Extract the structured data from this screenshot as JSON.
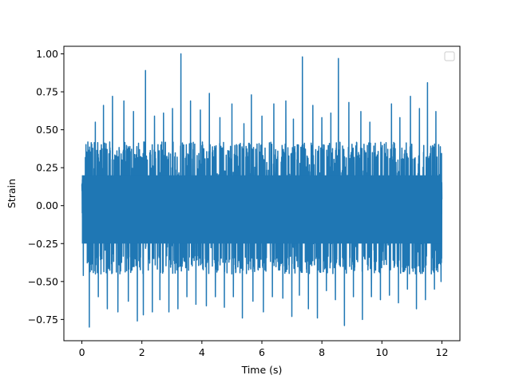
{
  "chart_data": {
    "type": "line",
    "title": "",
    "xlabel": "Time (s)",
    "ylabel": "Strain",
    "xlim": [
      -0.6,
      12.6
    ],
    "ylim": [
      -0.89,
      1.05
    ],
    "xticks": [
      0,
      2,
      4,
      6,
      8,
      10,
      12
    ],
    "xtick_labels": [
      "0",
      "2",
      "4",
      "6",
      "8",
      "10",
      "12"
    ],
    "yticks": [
      -0.75,
      -0.5,
      -0.25,
      0.0,
      0.25,
      0.5,
      0.75,
      1.0
    ],
    "ytick_labels": [
      "−0.75",
      "−0.50",
      "−0.25",
      "0.00",
      "0.25",
      "0.50",
      "0.75",
      "1.00"
    ],
    "grid": false,
    "legend": {
      "placement": "top-right",
      "entries": []
    },
    "series": [
      {
        "color": "#1f77b4",
        "x_range": [
          0,
          12
        ],
        "typical_envelope": [
          -0.45,
          0.42
        ],
        "peaks": [
          {
            "x": 0.2,
            "y": 0.42
          },
          {
            "x": 0.45,
            "y": 0.55
          },
          {
            "x": 0.72,
            "y": 0.66
          },
          {
            "x": 1.02,
            "y": 0.72
          },
          {
            "x": 1.4,
            "y": 0.69
          },
          {
            "x": 1.72,
            "y": 0.62
          },
          {
            "x": 2.12,
            "y": 0.89
          },
          {
            "x": 2.42,
            "y": 0.59
          },
          {
            "x": 2.72,
            "y": 0.61
          },
          {
            "x": 3.02,
            "y": 0.64
          },
          {
            "x": 3.3,
            "y": 1.0
          },
          {
            "x": 3.62,
            "y": 0.69
          },
          {
            "x": 3.95,
            "y": 0.63
          },
          {
            "x": 4.25,
            "y": 0.74
          },
          {
            "x": 4.6,
            "y": 0.58
          },
          {
            "x": 5.0,
            "y": 0.67
          },
          {
            "x": 5.4,
            "y": 0.54
          },
          {
            "x": 5.65,
            "y": 0.73
          },
          {
            "x": 6.0,
            "y": 0.59
          },
          {
            "x": 6.4,
            "y": 0.67
          },
          {
            "x": 6.8,
            "y": 0.69
          },
          {
            "x": 7.05,
            "y": 0.57
          },
          {
            "x": 7.35,
            "y": 0.98
          },
          {
            "x": 7.7,
            "y": 0.66
          },
          {
            "x": 8.0,
            "y": 0.58
          },
          {
            "x": 8.3,
            "y": 0.61
          },
          {
            "x": 8.55,
            "y": 0.97
          },
          {
            "x": 8.9,
            "y": 0.68
          },
          {
            "x": 9.3,
            "y": 0.62
          },
          {
            "x": 9.6,
            "y": 0.55
          },
          {
            "x": 9.95,
            "y": 0.66
          },
          {
            "x": 10.32,
            "y": 0.67
          },
          {
            "x": 10.6,
            "y": 0.58
          },
          {
            "x": 10.95,
            "y": 0.72
          },
          {
            "x": 11.25,
            "y": 0.64
          },
          {
            "x": 11.52,
            "y": 0.81
          },
          {
            "x": 11.8,
            "y": 0.62
          },
          {
            "x": 11.97,
            "y": 0.48
          }
        ],
        "troughs": [
          {
            "x": 0.05,
            "y": -0.46
          },
          {
            "x": 0.25,
            "y": -0.8
          },
          {
            "x": 0.55,
            "y": -0.6
          },
          {
            "x": 0.85,
            "y": -0.68
          },
          {
            "x": 1.2,
            "y": -0.7
          },
          {
            "x": 1.55,
            "y": -0.63
          },
          {
            "x": 1.85,
            "y": -0.76
          },
          {
            "x": 2.05,
            "y": -0.72
          },
          {
            "x": 2.35,
            "y": -0.7
          },
          {
            "x": 2.6,
            "y": -0.62
          },
          {
            "x": 2.9,
            "y": -0.7
          },
          {
            "x": 3.2,
            "y": -0.68
          },
          {
            "x": 3.5,
            "y": -0.6
          },
          {
            "x": 3.8,
            "y": -0.65
          },
          {
            "x": 4.15,
            "y": -0.66
          },
          {
            "x": 4.45,
            "y": -0.6
          },
          {
            "x": 4.75,
            "y": -0.67
          },
          {
            "x": 5.05,
            "y": -0.6
          },
          {
            "x": 5.35,
            "y": -0.74
          },
          {
            "x": 5.7,
            "y": -0.63
          },
          {
            "x": 6.05,
            "y": -0.7
          },
          {
            "x": 6.35,
            "y": -0.6
          },
          {
            "x": 6.7,
            "y": -0.61
          },
          {
            "x": 7.0,
            "y": -0.73
          },
          {
            "x": 7.25,
            "y": -0.59
          },
          {
            "x": 7.55,
            "y": -0.68
          },
          {
            "x": 7.85,
            "y": -0.74
          },
          {
            "x": 8.15,
            "y": -0.56
          },
          {
            "x": 8.45,
            "y": -0.62
          },
          {
            "x": 8.75,
            "y": -0.79
          },
          {
            "x": 9.05,
            "y": -0.6
          },
          {
            "x": 9.35,
            "y": -0.75
          },
          {
            "x": 9.65,
            "y": -0.6
          },
          {
            "x": 9.95,
            "y": -0.62
          },
          {
            "x": 10.25,
            "y": -0.59
          },
          {
            "x": 10.55,
            "y": -0.64
          },
          {
            "x": 10.85,
            "y": -0.55
          },
          {
            "x": 11.15,
            "y": -0.68
          },
          {
            "x": 11.45,
            "y": -0.62
          },
          {
            "x": 11.75,
            "y": -0.55
          },
          {
            "x": 11.97,
            "y": -0.5
          }
        ]
      }
    ]
  }
}
